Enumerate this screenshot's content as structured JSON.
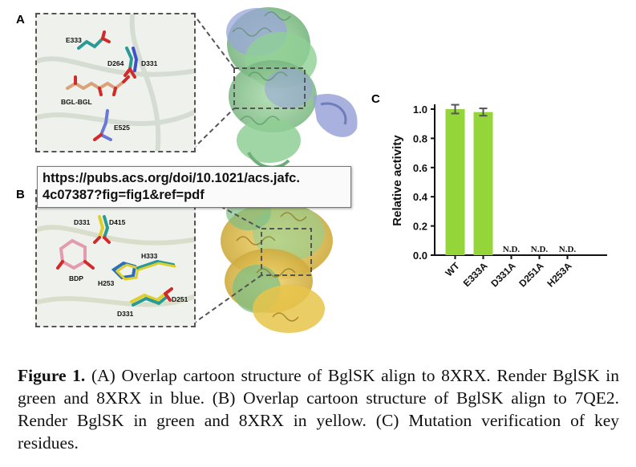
{
  "panels": {
    "a_letter": "A",
    "b_letter": "B",
    "c_letter": "C"
  },
  "inset_a_labels": {
    "e333": "E333",
    "d264": "D264",
    "d331": "D331",
    "ligand": "BGL-BGL",
    "e525": "E525"
  },
  "inset_b_labels": {
    "d331_top": "D331",
    "d415": "D415",
    "h333": "H333",
    "bdp": "BDP",
    "h253": "H253",
    "d251": "D251",
    "d331_bottom": "D331"
  },
  "tooltip": {
    "line1": "https://pubs.acs.org/doi/10.1021/acs.jafc.",
    "line2": "4c07387?fig=fig1&ref=pdf"
  },
  "colors": {
    "bar": "#94d63a",
    "green_protein": "#8fcf95",
    "blue_protein": "#9aa5d8",
    "yellow_protein": "#e8c44a"
  },
  "chart_data": {
    "type": "bar",
    "categories": [
      "WT",
      "E333A",
      "D331A",
      "D251A",
      "H253A"
    ],
    "values": [
      1.0,
      0.98,
      0,
      0,
      0
    ],
    "errors": [
      0.03,
      0.025,
      0,
      0,
      0
    ],
    "annotations": [
      "",
      "",
      "N.D.",
      "N.D.",
      "N.D."
    ],
    "ylabel": "Relative activity",
    "ylim": [
      0,
      1.0
    ],
    "yticks": [
      "0.0",
      "0.2",
      "0.4",
      "0.6",
      "0.8",
      "1.0"
    ],
    "grid": false
  },
  "caption": {
    "label": "Figure 1.",
    "text": " (A) Overlap cartoon structure of BglSK align to 8XRX. Render BglSK in green and 8XRX in blue. (B) Overlap cartoon structure of BglSK align to 7QE2. Render BglSK in green and 8XRX in yellow. (C) Mutation verification of key residues."
  }
}
